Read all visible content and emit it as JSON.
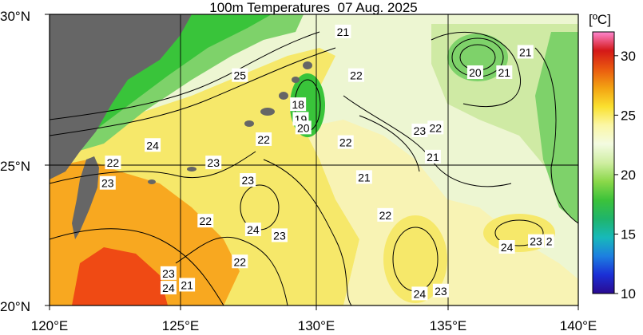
{
  "title": "100m Temperatures  07 Aug. 2025",
  "unit_label": "[ºC]",
  "axes": {
    "lon_ticks": [
      "120°E",
      "125°E",
      "130°E",
      "135°E",
      "140°E"
    ],
    "lat_ticks": [
      "30°N",
      "25°N",
      "20°N"
    ],
    "lon_range": [
      120,
      140
    ],
    "lat_range": [
      20,
      30
    ]
  },
  "colorbar": {
    "ticks": [
      "10",
      "15",
      "20",
      "25",
      "30"
    ],
    "range": [
      10,
      32
    ],
    "colors": [
      "#2a0a90",
      "#1b2fd6",
      "#1d7fe0",
      "#17b9b9",
      "#1fb46b",
      "#3cc23a",
      "#8bd84a",
      "#cfeea2",
      "#f3fbe1",
      "#fbf7a6",
      "#fae02f",
      "#f3a312",
      "#ea5a10",
      "#d41818",
      "#ff86d0"
    ]
  },
  "map_colors": {
    "land": "#666666",
    "background": "#edf6d2",
    "warm_south": "#ef4a14",
    "warm_mid": "#f8a820",
    "yellow": "#f6e86a",
    "light_yellow": "#f8f3b4",
    "pale_green": "#cfeaa4",
    "green": "#7ed26a",
    "bright_green": "#39c43a"
  },
  "contour_labels": [
    {
      "text": "21",
      "lon": 131.1,
      "lat": 29.4
    },
    {
      "text": "22",
      "lon": 131.6,
      "lat": 27.9
    },
    {
      "text": "25",
      "lon": 127.2,
      "lat": 27.9
    },
    {
      "text": "18",
      "lon": 129.4,
      "lat": 26.9
    },
    {
      "text": "19",
      "lon": 129.5,
      "lat": 26.4
    },
    {
      "text": "20",
      "lon": 129.6,
      "lat": 26.1
    },
    {
      "text": "20",
      "lon": 136.1,
      "lat": 28.0
    },
    {
      "text": "21",
      "lon": 137.2,
      "lat": 28.0
    },
    {
      "text": "21",
      "lon": 138.0,
      "lat": 28.7
    },
    {
      "text": "23",
      "lon": 134.0,
      "lat": 26.0
    },
    {
      "text": "22",
      "lon": 134.6,
      "lat": 26.1
    },
    {
      "text": "21",
      "lon": 134.5,
      "lat": 25.1
    },
    {
      "text": "22",
      "lon": 128.1,
      "lat": 25.7
    },
    {
      "text": "22",
      "lon": 131.2,
      "lat": 25.6
    },
    {
      "text": "24",
      "lon": 123.9,
      "lat": 25.5
    },
    {
      "text": "22",
      "lon": 122.4,
      "lat": 24.9
    },
    {
      "text": "23",
      "lon": 126.2,
      "lat": 24.9
    },
    {
      "text": "21",
      "lon": 131.9,
      "lat": 24.4
    },
    {
      "text": "23",
      "lon": 122.2,
      "lat": 24.2
    },
    {
      "text": "23",
      "lon": 127.5,
      "lat": 24.3
    },
    {
      "text": "22",
      "lon": 132.7,
      "lat": 23.1
    },
    {
      "text": "22",
      "lon": 125.9,
      "lat": 22.9
    },
    {
      "text": "24",
      "lon": 127.7,
      "lat": 22.6
    },
    {
      "text": "23",
      "lon": 128.7,
      "lat": 22.4
    },
    {
      "text": "24",
      "lon": 137.3,
      "lat": 22.0
    },
    {
      "text": "23",
      "lon": 138.4,
      "lat": 22.2
    },
    {
      "text": "2",
      "lon": 138.9,
      "lat": 22.2
    },
    {
      "text": "22",
      "lon": 127.2,
      "lat": 21.5
    },
    {
      "text": "23",
      "lon": 124.5,
      "lat": 21.1
    },
    {
      "text": "24",
      "lon": 124.5,
      "lat": 20.6
    },
    {
      "text": "21",
      "lon": 125.2,
      "lat": 20.7
    },
    {
      "text": "24",
      "lon": 134.0,
      "lat": 20.4
    },
    {
      "text": "23",
      "lon": 134.8,
      "lat": 20.5
    }
  ]
}
